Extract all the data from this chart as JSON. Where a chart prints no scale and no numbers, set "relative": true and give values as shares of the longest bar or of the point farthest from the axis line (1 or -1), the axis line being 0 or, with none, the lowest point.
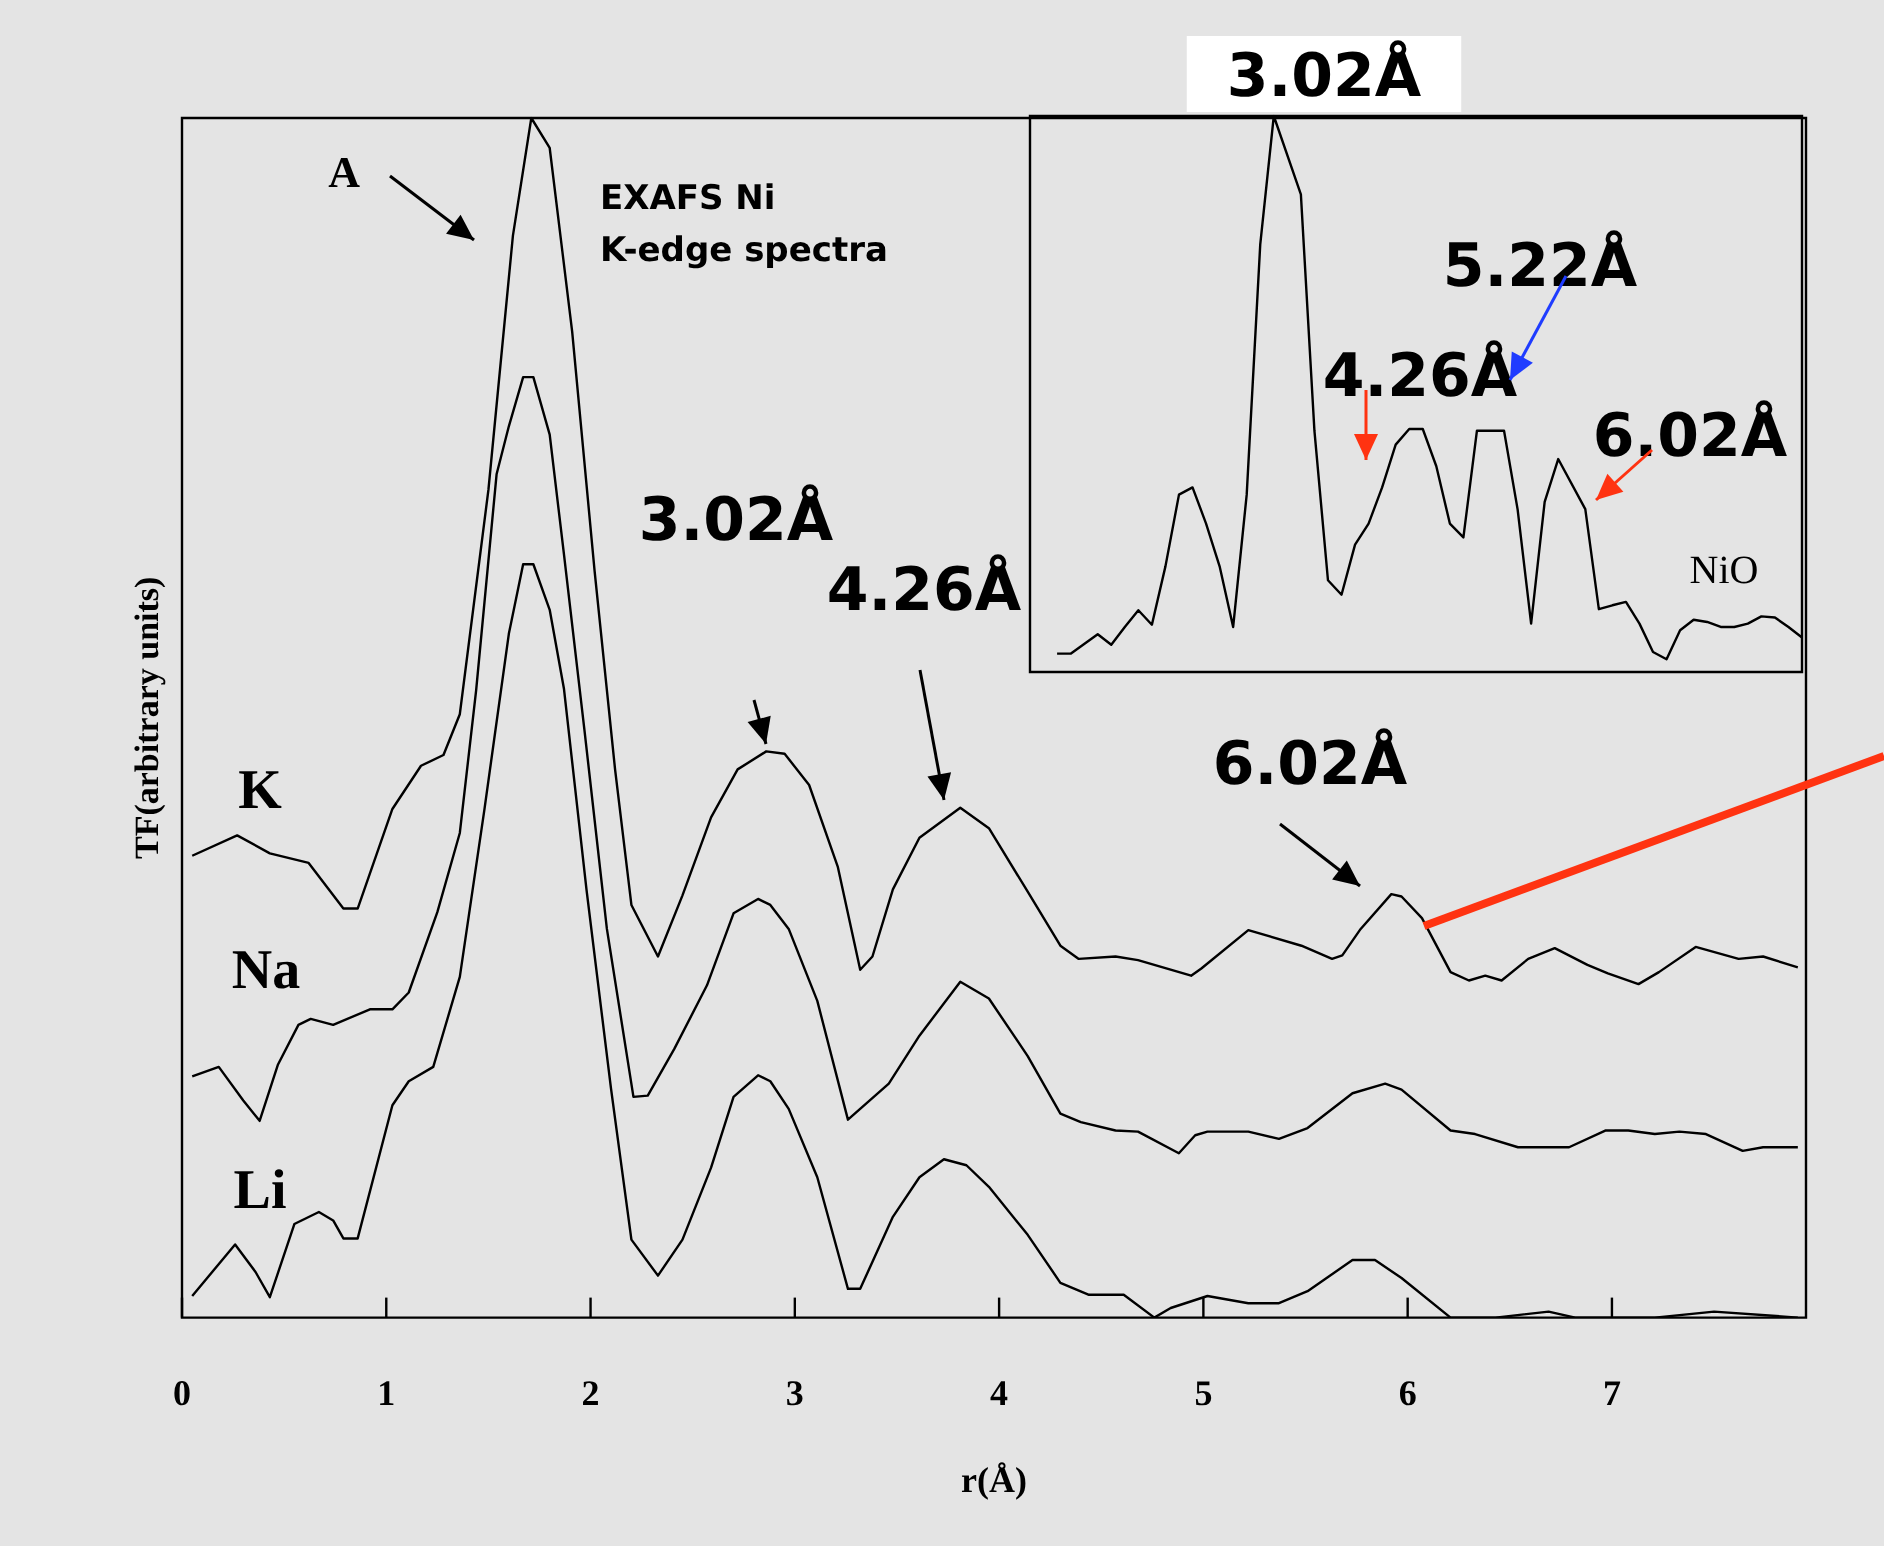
{
  "chart_data": [
    {
      "type": "line",
      "xlabel": "r(Å)",
      "ylabel": "TF(arbitrary units)",
      "xlim": [
        0,
        7.95
      ],
      "xticks": [
        0,
        1,
        2,
        3,
        4,
        5,
        6,
        7
      ],
      "relative": true,
      "legend": false,
      "marker": "none",
      "annotations": [
        "A",
        "EXAFS Ni K-edge spectra",
        "3.02Å",
        "4.26Å",
        "6.02Å"
      ],
      "series": [
        {
          "name": "K",
          "color": "#000000",
          "x": [
            0.05,
            0.27,
            0.43,
            0.62,
            0.79,
            0.86,
            1.03,
            1.17,
            1.28,
            1.36,
            1.5,
            1.62,
            1.71,
            1.8,
            1.91,
            2.02,
            2.12,
            2.2,
            2.33,
            2.45,
            2.59,
            2.72,
            2.86,
            2.95,
            3.07,
            3.21,
            3.32,
            3.38,
            3.48,
            3.61,
            3.81,
            3.95,
            4.14,
            4.3,
            4.39,
            4.57,
            4.68,
            4.94,
            4.99,
            5.22,
            5.48,
            5.63,
            5.68,
            5.77,
            5.92,
            5.97,
            6.07,
            6.21,
            6.3,
            6.38,
            6.46,
            6.59,
            6.72,
            6.88,
            6.98,
            7.13,
            7.23,
            7.41,
            7.62,
            7.74,
            7.91
          ],
          "values": [
            0.385,
            0.402,
            0.387,
            0.379,
            0.341,
            0.341,
            0.424,
            0.46,
            0.469,
            0.503,
            0.69,
            0.902,
            1,
            0.975,
            0.822,
            0.622,
            0.457,
            0.344,
            0.301,
            0.352,
            0.417,
            0.457,
            0.472,
            0.47,
            0.444,
            0.376,
            0.29,
            0.301,
            0.357,
            0.4,
            0.425,
            0.408,
            0.355,
            0.31,
            0.299,
            0.301,
            0.298,
            0.285,
            0.291,
            0.323,
            0.31,
            0.299,
            0.302,
            0.324,
            0.353,
            0.351,
            0.333,
            0.288,
            0.281,
            0.285,
            0.281,
            0.299,
            0.308,
            0.294,
            0.287,
            0.278,
            0.288,
            0.309,
            0.299,
            0.301,
            0.292
          ]
        },
        {
          "name": "Na",
          "color": "#000000",
          "x": [
            0.05,
            0.18,
            0.3,
            0.38,
            0.47,
            0.57,
            0.63,
            0.74,
            0.92,
            1.03,
            1.11,
            1.25,
            1.36,
            1.44,
            1.54,
            1.6,
            1.67,
            1.72,
            1.8,
            1.87,
            1.97,
            2.08,
            2.21,
            2.28,
            2.41,
            2.57,
            2.7,
            2.82,
            2.88,
            2.97,
            3.11,
            3.26,
            3.46,
            3.61,
            3.81,
            3.95,
            4.14,
            4.3,
            4.4,
            4.57,
            4.68,
            4.88,
            4.96,
            5.02,
            5.22,
            5.37,
            5.51,
            5.73,
            5.89,
            5.97,
            6.21,
            6.33,
            6.54,
            6.79,
            6.97,
            7.08,
            7.21,
            7.33,
            7.46,
            7.64,
            7.74,
            7.91
          ],
          "values": [
            0.201,
            0.209,
            0.181,
            0.164,
            0.211,
            0.244,
            0.249,
            0.244,
            0.257,
            0.257,
            0.271,
            0.338,
            0.404,
            0.523,
            0.703,
            0.743,
            0.784,
            0.784,
            0.736,
            0.636,
            0.49,
            0.324,
            0.184,
            0.185,
            0.224,
            0.277,
            0.337,
            0.349,
            0.344,
            0.324,
            0.264,
            0.165,
            0.195,
            0.235,
            0.28,
            0.266,
            0.218,
            0.17,
            0.163,
            0.156,
            0.155,
            0.137,
            0.152,
            0.155,
            0.155,
            0.149,
            0.158,
            0.187,
            0.195,
            0.19,
            0.156,
            0.153,
            0.142,
            0.142,
            0.156,
            0.156,
            0.153,
            0.155,
            0.153,
            0.139,
            0.142,
            0.142
          ]
        },
        {
          "name": "Li",
          "color": "#000000",
          "x": [
            0.05,
            0.26,
            0.36,
            0.43,
            0.55,
            0.67,
            0.74,
            0.79,
            0.86,
            1.03,
            1.11,
            1.23,
            1.36,
            1.48,
            1.6,
            1.67,
            1.72,
            1.8,
            1.87,
            1.98,
            2.1,
            2.2,
            2.33,
            2.45,
            2.59,
            2.7,
            2.82,
            2.88,
            2.97,
            3.11,
            3.26,
            3.32,
            3.48,
            3.61,
            3.73,
            3.84,
            3.95,
            4.14,
            4.3,
            4.44,
            4.61,
            4.76,
            4.84,
            5.02,
            5.22,
            5.37,
            5.51,
            5.73,
            5.84,
            5.97,
            6.21,
            6.43,
            6.69,
            6.82,
            7.21,
            7.5,
            7.91
          ],
          "values": [
            0.018,
            0.061,
            0.038,
            0.017,
            0.078,
            0.088,
            0.081,
            0.066,
            0.066,
            0.177,
            0.197,
            0.209,
            0.284,
            0.423,
            0.57,
            0.628,
            0.628,
            0.59,
            0.524,
            0.357,
            0.191,
            0.065,
            0.035,
            0.065,
            0.125,
            0.184,
            0.202,
            0.197,
            0.174,
            0.117,
            0.024,
            0.024,
            0.084,
            0.117,
            0.132,
            0.127,
            0.109,
            0.069,
            0.029,
            0.019,
            0.019,
            0,
            0.008,
            0.018,
            0.012,
            0.012,
            0.022,
            0.048,
            0.048,
            0.033,
            0,
            0,
            0.005,
            0,
            0,
            0.005,
            0
          ]
        }
      ]
    },
    {
      "type": "line",
      "relative": true,
      "legend": false,
      "marker": "none",
      "annotations": [
        "3.02Å",
        "5.22Å",
        "4.26Å",
        "6.02Å"
      ],
      "categories": [
        null,
        null,
        null,
        null,
        null,
        null,
        null,
        null,
        null,
        null,
        null,
        null,
        null,
        null,
        null,
        null,
        null,
        null,
        null,
        null,
        null,
        null,
        null,
        null,
        null,
        null,
        null,
        null,
        null,
        null,
        null,
        null,
        null,
        null,
        null,
        null,
        null,
        null,
        null,
        null,
        null,
        null,
        null,
        null,
        null,
        null,
        null,
        null,
        null,
        null,
        null,
        null,
        null,
        null,
        null,
        null,
        null,
        null
      ],
      "series": [
        {
          "name": "NiO",
          "color": "#000000",
          "values": [
            null,
            null,
            0.033,
            0.033,
            null,
            0.068,
            0.049,
            0.081,
            0.111,
            0.085,
            0.19,
            0.319,
            0.332,
            0.267,
            0.19,
            0.081,
            0.319,
            0.769,
            1,
            null,
            0.859,
            0.434,
            0.165,
            0.139,
            0.229,
            0.267,
            0.332,
            0.409,
            0.437,
            0.437,
            0.37,
            0.267,
            0.242,
            0.434,
            null,
            0.434,
            0.293,
            0.087,
            0.306,
            0.383,
            null,
            0.293,
            0.113,
            0.12,
            0.126,
            0.087,
            0.036,
            0.023,
            0.075,
            0.094,
            0.09,
            0.081,
            0.081,
            0.087,
            0.1,
            0.098,
            0.081,
            0.062
          ]
        }
      ]
    }
  ]
}
